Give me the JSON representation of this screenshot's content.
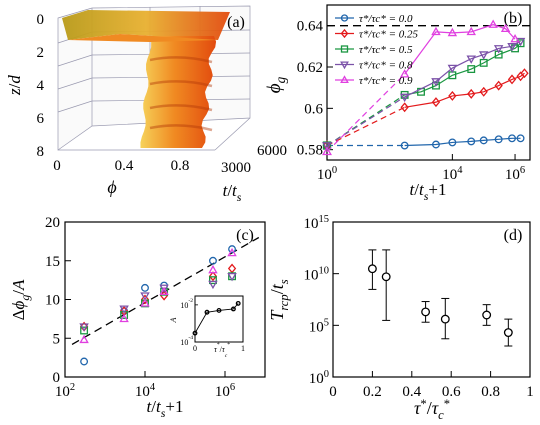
{
  "chart_data": [
    {
      "panel": "(a)",
      "type": "surface",
      "xlabel": "ϕ",
      "ylabel": "z/d",
      "zlabel": "t/t_s",
      "x_ticks": [
        "0",
        "0.4",
        "0.8"
      ],
      "y_ticks": [
        "0",
        "2",
        "4",
        "6",
        "8"
      ],
      "z_ticks": [
        "3000",
        "6000"
      ],
      "colors": {
        "dark": "#e24a0e",
        "mid": "#f08a22",
        "light": "#f6d25a"
      }
    },
    {
      "panel": "(b)",
      "type": "line",
      "xlabel": "t/t_s+1",
      "ylabel": "ϕ_g",
      "xscale": "log",
      "xlim": [
        1,
        3000000
      ],
      "ylim": [
        0.575,
        0.65
      ],
      "x_ticks": [
        {
          "v": 1,
          "base": "10",
          "exp": "0"
        },
        {
          "v": 10000,
          "base": "10",
          "exp": "4"
        },
        {
          "v": 1000000,
          "base": "10",
          "exp": "6"
        }
      ],
      "y_ticks": [
        0.58,
        0.6,
        0.62,
        0.64
      ],
      "y_tick_labels": [
        "0.58",
        "0.6",
        "0.62",
        "0.64"
      ],
      "reference_line": {
        "y": 0.64
      },
      "series": [
        {
          "name": "τ*/τc* = 0.0",
          "color": "#2166ac",
          "marker": "circle",
          "start": [
            1,
            0.582
          ],
          "x": [
            300,
            3000,
            10000,
            40000,
            100000,
            300000,
            800000,
            1500000
          ],
          "y": [
            0.582,
            0.5825,
            0.5835,
            0.584,
            0.5845,
            0.585,
            0.5855,
            0.5855
          ]
        },
        {
          "name": "τ*/τc* = 0.25",
          "color": "#e31a1c",
          "marker": "diamond",
          "start": [
            1,
            0.582
          ],
          "x": [
            300,
            3000,
            10000,
            40000,
            100000,
            300000,
            800000,
            1500000,
            2000000
          ],
          "y": [
            0.6005,
            0.603,
            0.606,
            0.607,
            0.608,
            0.611,
            0.614,
            0.6155,
            0.617
          ]
        },
        {
          "name": "τ*/τc* = 0.5",
          "color": "#1a9641",
          "marker": "square",
          "start": [
            1,
            0.582
          ],
          "x": [
            300,
            1000,
            3000,
            10000,
            40000,
            100000,
            300000,
            1000000,
            1500000
          ],
          "y": [
            0.6065,
            0.608,
            0.611,
            0.616,
            0.619,
            0.622,
            0.626,
            0.629,
            0.6315
          ]
        },
        {
          "name": "τ*/τc* = 0.8",
          "color": "#7b52a8",
          "marker": "triangle-down",
          "start": [
            1,
            0.582
          ],
          "x": [
            300,
            3000,
            10000,
            40000,
            100000,
            300000,
            800000,
            1500000
          ],
          "y": [
            0.6055,
            0.613,
            0.6195,
            0.624,
            0.626,
            0.629,
            0.63,
            0.6325
          ]
        },
        {
          "name": "τ*/τc* = 0.9",
          "color": "#e040e0",
          "marker": "triangle-up",
          "start": [
            1,
            0.579
          ],
          "x": [
            300,
            3000,
            10000,
            40000,
            200000,
            500000,
            1000000
          ],
          "y": [
            0.6165,
            0.637,
            0.6365,
            0.637,
            0.6405,
            0.6385,
            0.6335
          ]
        }
      ]
    },
    {
      "panel": "(c)",
      "type": "scatter",
      "xlabel": "t/t_s+1",
      "ylabel": "Δϕ_g/A",
      "xscale": "log",
      "xlim": [
        100,
        10000000
      ],
      "ylim": [
        0,
        20
      ],
      "x_ticks": [
        {
          "v": 100,
          "base": "10",
          "exp": "2"
        },
        {
          "v": 10000,
          "base": "10",
          "exp": "4"
        },
        {
          "v": 1000000,
          "base": "10",
          "exp": "6"
        }
      ],
      "y_ticks": [
        0,
        5,
        10,
        15,
        20
      ],
      "fit_line": {
        "x": [
          150,
          7000000
        ],
        "y": [
          4.2,
          18.0
        ]
      },
      "series": [
        {
          "name": "τ*/τc* = 0.0",
          "color": "#2166ac",
          "marker": "circle",
          "x": [
            300,
            3000,
            10000,
            30000,
            500000,
            1500000
          ],
          "y": [
            2.0,
            8.5,
            11.5,
            11.8,
            15.0,
            16.5
          ]
        },
        {
          "name": "τ*/τc* = 0.25",
          "color": "#e31a1c",
          "marker": "diamond",
          "x": [
            300,
            3000,
            10000,
            30000,
            500000,
            1500000
          ],
          "y": [
            6.5,
            8.5,
            10.0,
            10.5,
            13.0,
            14.0
          ]
        },
        {
          "name": "τ*/τc* = 0.5",
          "color": "#1a9641",
          "marker": "square",
          "x": [
            300,
            3000,
            10000,
            30000,
            500000,
            1500000
          ],
          "y": [
            6.0,
            8.0,
            9.5,
            11.0,
            12.5,
            13.0
          ]
        },
        {
          "name": "τ*/τc* = 0.8",
          "color": "#7b52a8",
          "marker": "triangle-down",
          "x": [
            300,
            3000,
            10000,
            30000,
            500000,
            1500000
          ],
          "y": [
            6.5,
            8.8,
            10.5,
            11.5,
            12.0,
            13.0
          ]
        },
        {
          "name": "τ*/τc* = 0.9",
          "color": "#e040e0",
          "marker": "triangle-up",
          "x": [
            300,
            3000,
            10000,
            30000,
            500000,
            1500000
          ],
          "y": [
            4.8,
            7.5,
            9.5,
            11.0,
            13.8,
            16.0
          ]
        }
      ],
      "inset": {
        "ylabel": "A",
        "xlabel": "τ*/τc*",
        "x_ticks": [
          "0",
          "1"
        ],
        "y_ticks": [
          {
            "v": 0.0001,
            "base": "10",
            "exp": "-4"
          },
          {
            "v": 0.01,
            "base": "10",
            "exp": "-2"
          }
        ],
        "xlim": [
          0,
          1
        ],
        "ylim": [
          0.0001,
          0.03
        ],
        "x": [
          0.0,
          0.25,
          0.5,
          0.8,
          0.9
        ],
        "y": [
          0.0003,
          0.004,
          0.005,
          0.006,
          0.012
        ]
      }
    },
    {
      "panel": "(d)",
      "type": "scatter",
      "xlabel": "τ*/τc*",
      "ylabel": "T_rcp/t_s",
      "yscale": "log",
      "xlim": [
        0,
        1
      ],
      "ylim": [
        1,
        1000000000000000
      ],
      "x_ticks": [
        0,
        0.2,
        0.4,
        0.6,
        0.8,
        1
      ],
      "x_tick_labels": [
        "0",
        "0.2",
        "0.4",
        "0.6",
        "0.8",
        "1"
      ],
      "y_ticks": [
        {
          "v": 1,
          "base": "10",
          "exp": "0"
        },
        {
          "v": 100000,
          "base": "10",
          "exp": "5"
        },
        {
          "v": 10000000000,
          "base": "10",
          "exp": "10"
        },
        {
          "v": 1000000000000000,
          "base": "10",
          "exp": "15"
        }
      ],
      "points": [
        {
          "x": 0.2,
          "y": 30000000000.0,
          "lo": 300000000.0,
          "hi": 2000000000000.0
        },
        {
          "x": 0.27,
          "y": 5000000000.0,
          "lo": 300000.0,
          "hi": 2000000000000.0
        },
        {
          "x": 0.47,
          "y": 2000000.0,
          "lo": 200000.0,
          "hi": 20000000.0
        },
        {
          "x": 0.57,
          "y": 400000.0,
          "lo": 5000.0,
          "hi": 40000000.0
        },
        {
          "x": 0.78,
          "y": 1000000.0,
          "lo": 100000.0,
          "hi": 10000000.0
        },
        {
          "x": 0.89,
          "y": 20000.0,
          "lo": 1000.0,
          "hi": 400000.0
        }
      ]
    }
  ]
}
